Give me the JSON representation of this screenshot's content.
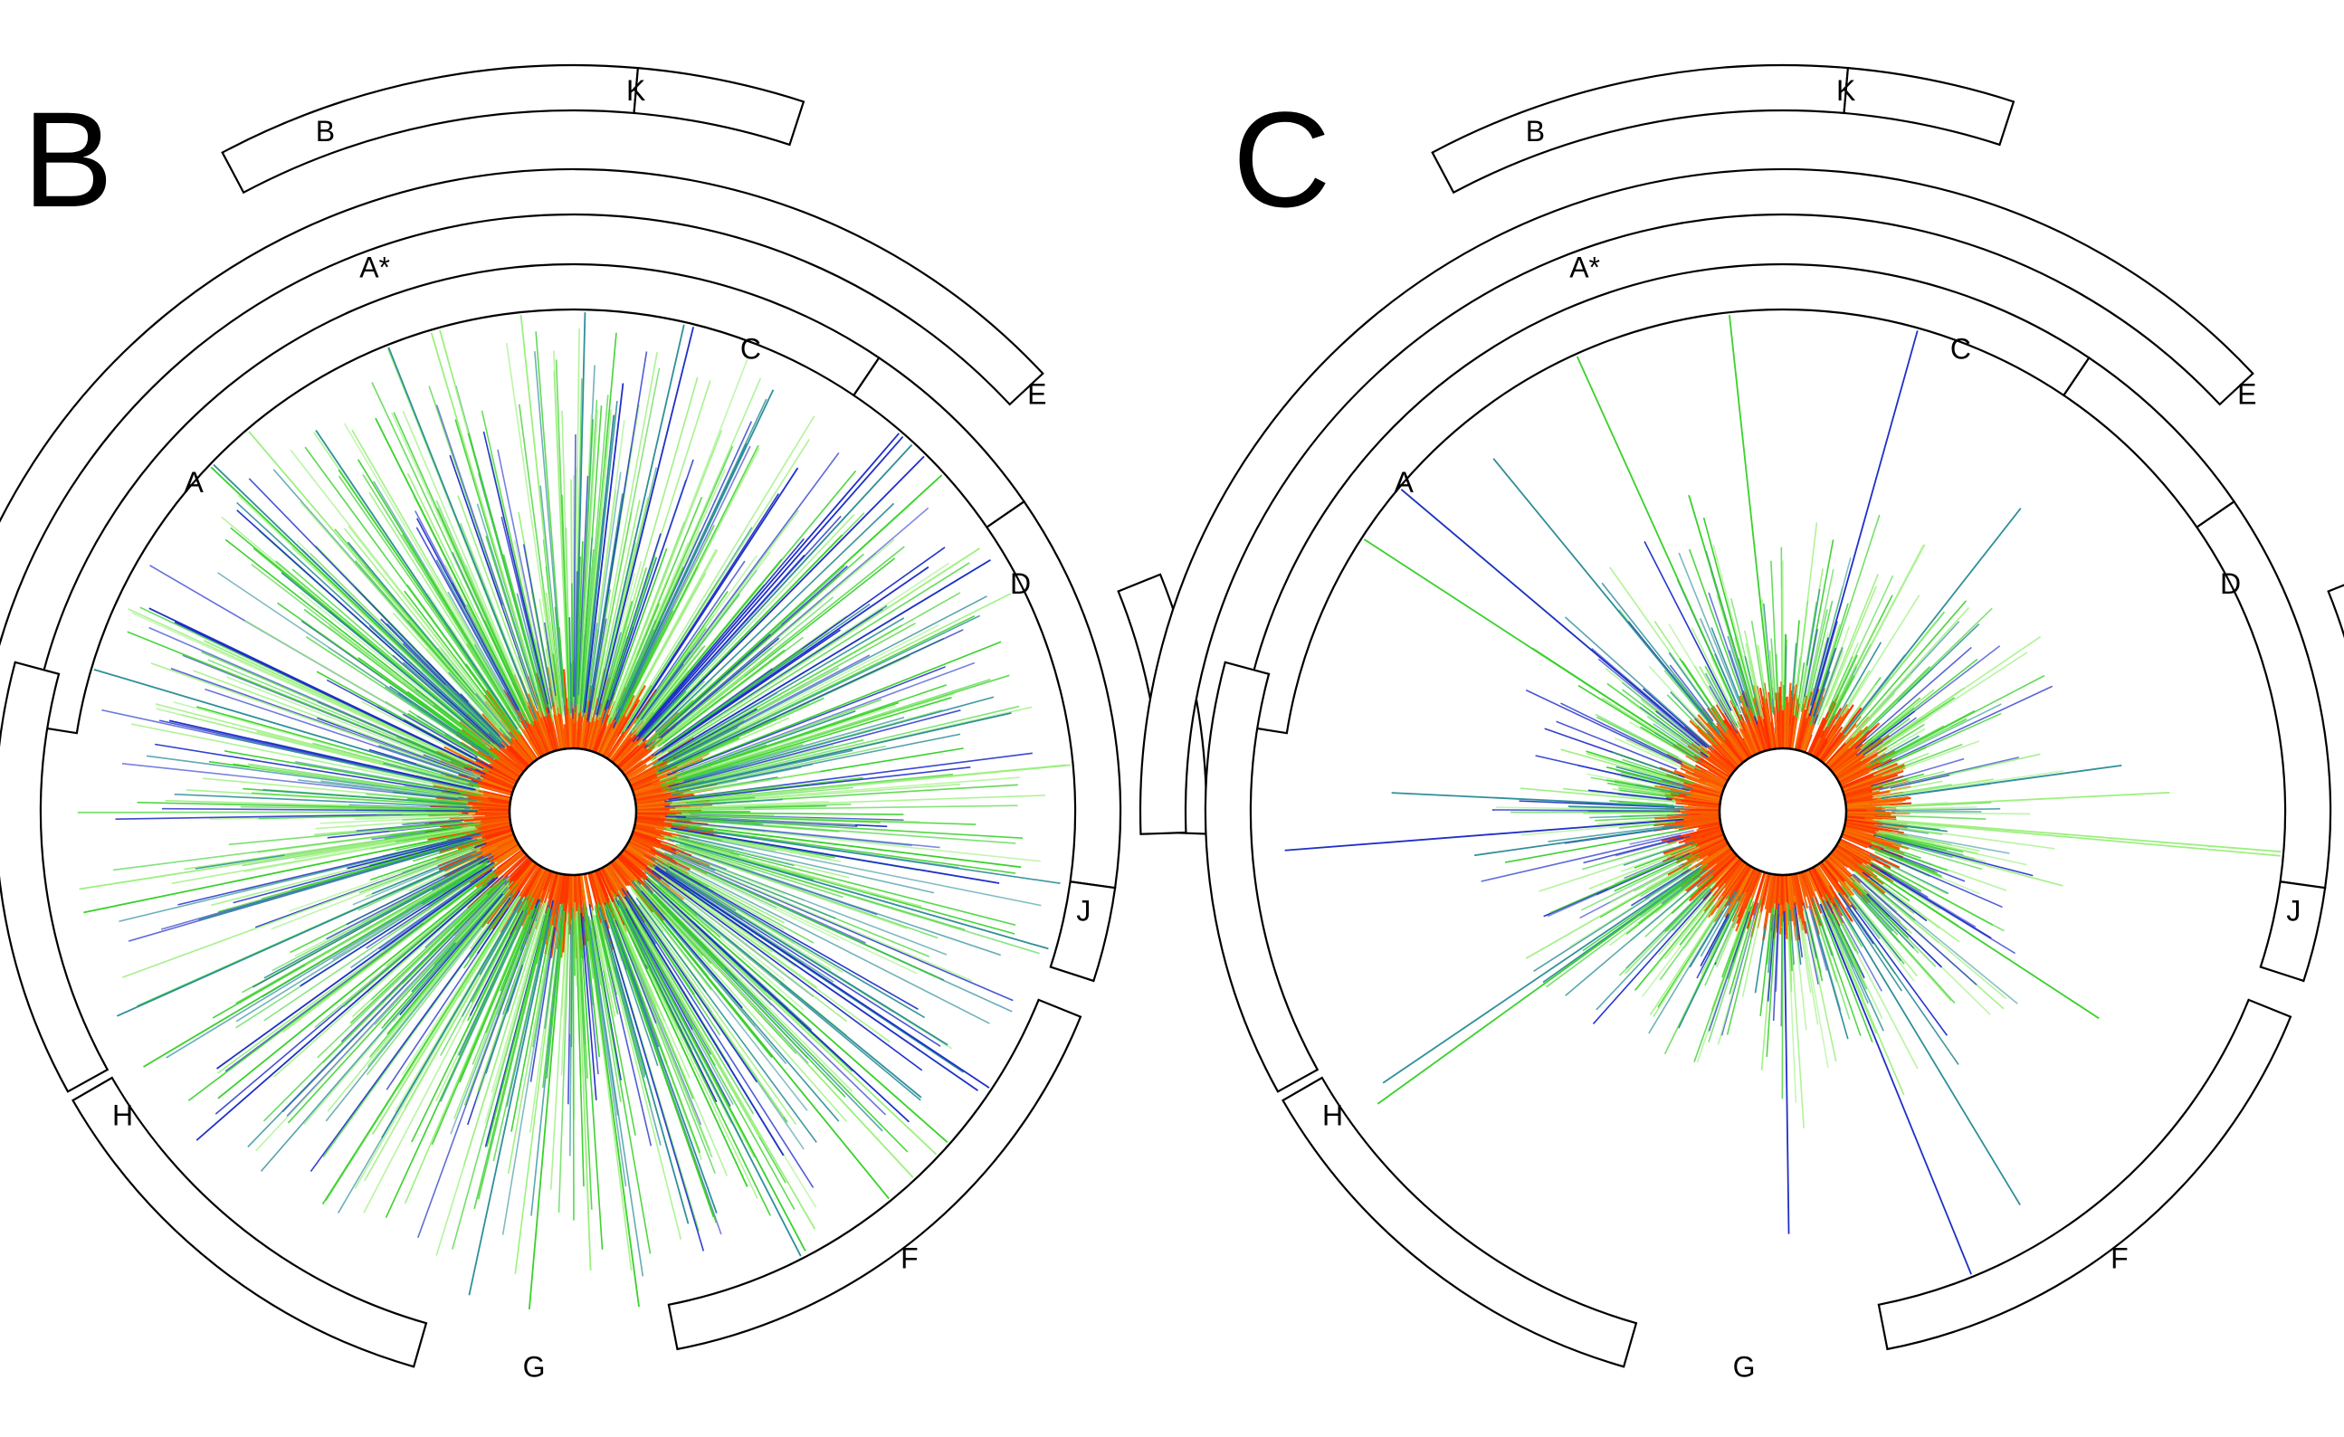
{
  "colors": {
    "ray_near": "#ff2a00",
    "ray_mid": "#f0a000",
    "ray_green": "#39d12b",
    "ray_lightgreen": "#9cf07e",
    "ray_teal": "#2f8f99",
    "ray_blue": "#1f2fc8",
    "outline": "#000000"
  },
  "panels": [
    {
      "id": "B",
      "letter": "B",
      "density": "dense",
      "segments": [
        {
          "id": "A",
          "label": "A"
        },
        {
          "id": "C",
          "label": "C"
        },
        {
          "id": "D",
          "label": "D"
        },
        {
          "id": "J",
          "label": "J"
        },
        {
          "id": "F",
          "label": "F"
        },
        {
          "id": "G",
          "label": "G"
        },
        {
          "id": "H",
          "label": "H"
        },
        {
          "id": "A*",
          "label": "A*"
        },
        {
          "id": "B",
          "label": "B"
        },
        {
          "id": "K",
          "label": "K"
        },
        {
          "id": "E",
          "label": "E"
        }
      ]
    },
    {
      "id": "C",
      "letter": "C",
      "density": "sparse",
      "segments": [
        {
          "id": "A",
          "label": "A"
        },
        {
          "id": "C",
          "label": "C"
        },
        {
          "id": "D",
          "label": "D"
        },
        {
          "id": "J",
          "label": "J"
        },
        {
          "id": "F",
          "label": "F"
        },
        {
          "id": "G",
          "label": "G"
        },
        {
          "id": "H",
          "label": "H"
        },
        {
          "id": "A*",
          "label": "A*"
        },
        {
          "id": "B",
          "label": "B"
        },
        {
          "id": "K",
          "label": "K"
        },
        {
          "id": "E",
          "label": "E"
        }
      ]
    }
  ]
}
